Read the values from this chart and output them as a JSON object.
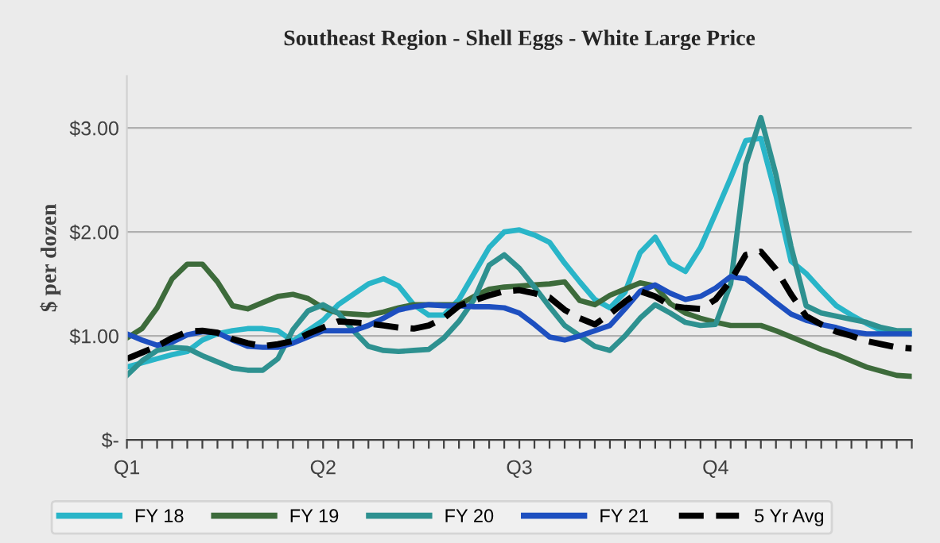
{
  "chart_data": {
    "type": "line",
    "title": "Southeast Region - Shell Eggs - White Large Price",
    "ylabel": "$ per dozen",
    "categories": [
      "Q1",
      null,
      null,
      null,
      null,
      null,
      null,
      null,
      null,
      null,
      null,
      null,
      null,
      "Q2",
      null,
      null,
      null,
      null,
      null,
      null,
      null,
      null,
      null,
      null,
      null,
      null,
      "Q3",
      null,
      null,
      null,
      null,
      null,
      null,
      null,
      null,
      null,
      null,
      null,
      null,
      "Q4",
      null,
      null,
      null,
      null,
      null,
      null,
      null,
      null,
      null,
      null,
      null,
      null,
      null
    ],
    "ylim": [
      0,
      3.5
    ],
    "yticks": [
      {
        "value": 0,
        "label": "$-"
      },
      {
        "value": 1,
        "label": "$1.00"
      },
      {
        "value": 2,
        "label": "$2.00"
      },
      {
        "value": 3,
        "label": "$3.00"
      }
    ],
    "grid": "y",
    "legend": "bottom",
    "marker": "none",
    "series": [
      {
        "name": "FY 18",
        "color": "#29b5c8",
        "line_style": "solid",
        "values": [
          0.7,
          0.74,
          0.78,
          0.82,
          0.85,
          0.96,
          1.02,
          1.05,
          1.07,
          1.07,
          1.05,
          0.95,
          1.05,
          1.15,
          1.3,
          1.4,
          1.5,
          1.55,
          1.48,
          1.3,
          1.2,
          1.2,
          1.35,
          1.6,
          1.85,
          2.0,
          2.02,
          1.97,
          1.9,
          1.7,
          1.52,
          1.35,
          1.27,
          1.42,
          1.8,
          1.95,
          1.7,
          1.62,
          1.85,
          2.18,
          2.52,
          2.88,
          2.9,
          2.35,
          1.72,
          1.6,
          1.44,
          1.29,
          1.2,
          1.12,
          1.05,
          1.03,
          1.02
        ]
      },
      {
        "name": "FY 19",
        "color": "#3d6b3b",
        "line_style": "solid",
        "values": [
          0.98,
          1.07,
          1.27,
          1.55,
          1.69,
          1.69,
          1.52,
          1.29,
          1.26,
          1.32,
          1.38,
          1.4,
          1.36,
          1.27,
          1.22,
          1.21,
          1.2,
          1.23,
          1.27,
          1.3,
          1.3,
          1.3,
          1.3,
          1.38,
          1.45,
          1.47,
          1.48,
          1.49,
          1.5,
          1.52,
          1.34,
          1.3,
          1.39,
          1.45,
          1.51,
          1.48,
          1.31,
          1.22,
          1.17,
          1.13,
          1.1,
          1.1,
          1.1,
          1.05,
          0.99,
          0.93,
          0.87,
          0.82,
          0.76,
          0.7,
          0.66,
          0.62,
          0.61
        ]
      },
      {
        "name": "FY 20",
        "color": "#2e9190",
        "line_style": "solid",
        "values": [
          0.62,
          0.76,
          0.86,
          0.89,
          0.88,
          0.81,
          0.75,
          0.69,
          0.67,
          0.67,
          0.78,
          1.06,
          1.24,
          1.3,
          1.22,
          1.05,
          0.9,
          0.86,
          0.85,
          0.86,
          0.87,
          0.98,
          1.14,
          1.35,
          1.68,
          1.78,
          1.65,
          1.47,
          1.28,
          1.1,
          1.0,
          0.9,
          0.86,
          1.0,
          1.17,
          1.3,
          1.22,
          1.13,
          1.1,
          1.11,
          1.5,
          2.65,
          3.1,
          2.55,
          1.86,
          1.29,
          1.22,
          1.19,
          1.16,
          1.13,
          1.08,
          1.05,
          1.05
        ]
      },
      {
        "name": "FY 21",
        "color": "#1d4fc0",
        "line_style": "solid",
        "values": [
          1.02,
          0.96,
          0.91,
          0.94,
          1.01,
          1.04,
          1.03,
          0.96,
          0.9,
          0.89,
          0.89,
          0.93,
          0.99,
          1.05,
          1.05,
          1.05,
          1.1,
          1.17,
          1.25,
          1.28,
          1.3,
          1.29,
          1.29,
          1.28,
          1.28,
          1.27,
          1.22,
          1.11,
          0.99,
          0.96,
          1.0,
          1.05,
          1.1,
          1.26,
          1.43,
          1.49,
          1.41,
          1.35,
          1.38,
          1.46,
          1.57,
          1.55,
          1.44,
          1.32,
          1.21,
          1.15,
          1.11,
          1.08,
          1.04,
          1.02,
          1.02,
          1.02,
          1.02
        ]
      },
      {
        "name": "5 Yr Avg",
        "color": "#000000",
        "line_style": "dashed",
        "values": [
          0.78,
          0.84,
          0.9,
          0.98,
          1.04,
          1.05,
          1.03,
          0.97,
          0.93,
          0.9,
          0.92,
          0.95,
          1.02,
          1.08,
          1.14,
          1.13,
          1.12,
          1.1,
          1.08,
          1.07,
          1.1,
          1.17,
          1.29,
          1.34,
          1.39,
          1.43,
          1.44,
          1.41,
          1.37,
          1.25,
          1.17,
          1.11,
          1.21,
          1.33,
          1.43,
          1.38,
          1.29,
          1.27,
          1.26,
          1.35,
          1.53,
          1.78,
          1.81,
          1.64,
          1.4,
          1.19,
          1.11,
          1.04,
          1.0,
          0.95,
          0.92,
          0.89,
          0.88
        ]
      }
    ]
  }
}
